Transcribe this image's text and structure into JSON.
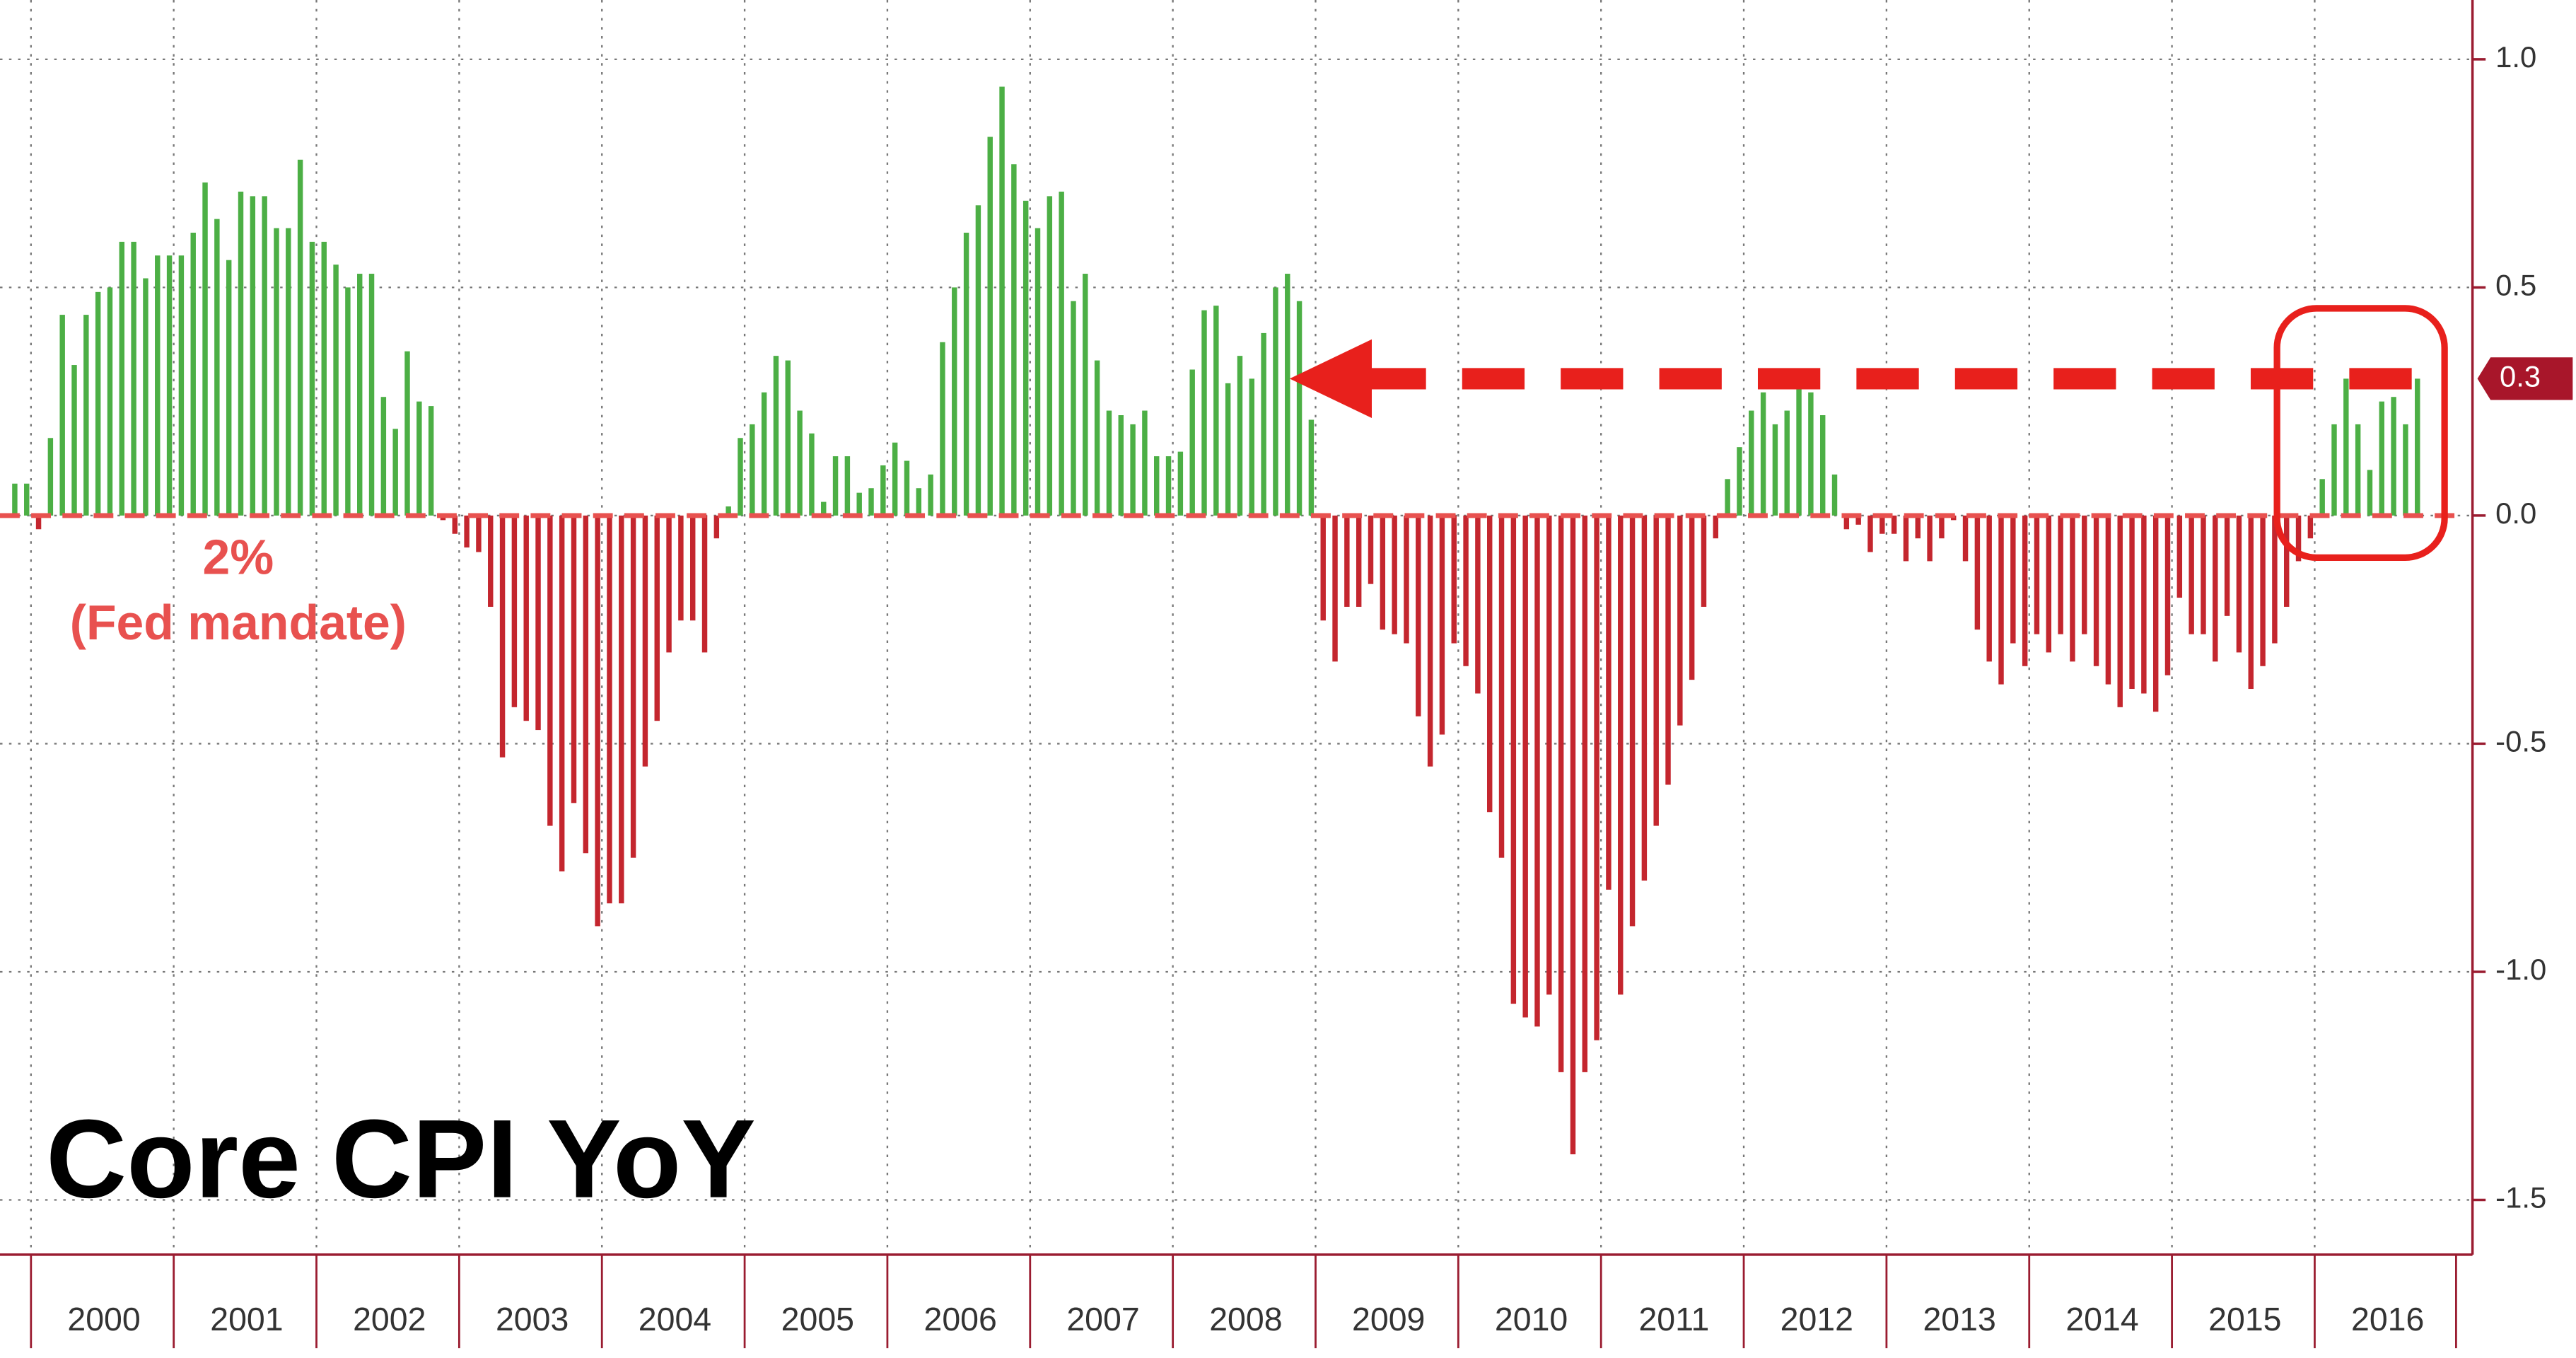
{
  "chart_data": {
    "type": "bar",
    "title": "Core CPI YoY",
    "annotation": [
      "2%",
      "(Fed mandate)"
    ],
    "categories": [
      null,
      null,
      null,
      null,
      null,
      null,
      null,
      null,
      "2000",
      null,
      null,
      null,
      null,
      null,
      null,
      null,
      null,
      null,
      null,
      null,
      "2001",
      null,
      null,
      null,
      null,
      null,
      null,
      null,
      null,
      null,
      null,
      null,
      "2002",
      null,
      null,
      null,
      null,
      null,
      null,
      null,
      null,
      null,
      null,
      null,
      "2003",
      null,
      null,
      null,
      null,
      null,
      null,
      null,
      null,
      null,
      null,
      null,
      "2004",
      null,
      null,
      null,
      null,
      null,
      null,
      null,
      null,
      null,
      null,
      null,
      "2005",
      null,
      null,
      null,
      null,
      null,
      null,
      null,
      null,
      null,
      null,
      null,
      "2006",
      null,
      null,
      null,
      null,
      null,
      null,
      null,
      null,
      null,
      null,
      null,
      "2007",
      null,
      null,
      null,
      null,
      null,
      null,
      null,
      null,
      null,
      null,
      null,
      "2008",
      null,
      null,
      null,
      null,
      null,
      null,
      null,
      null,
      null,
      null,
      null,
      "2009",
      null,
      null,
      null,
      null,
      null,
      null,
      null,
      null,
      null,
      null,
      null,
      "2010",
      null,
      null,
      null,
      null,
      null,
      null,
      null,
      null,
      null,
      null,
      null,
      "2011",
      null,
      null,
      null,
      null,
      null,
      null,
      null,
      null,
      null,
      null,
      null,
      "2012",
      null,
      null,
      null,
      null,
      null,
      null,
      null,
      null,
      null,
      null,
      null,
      "2013",
      null,
      null,
      null,
      null,
      null,
      null,
      null,
      null,
      null,
      null,
      null,
      "2014",
      null,
      null,
      null,
      null,
      null,
      null,
      null,
      null,
      null,
      null,
      null,
      "2015",
      null,
      null,
      null,
      null,
      null,
      null,
      null,
      null,
      null,
      null,
      null,
      "2016",
      null,
      null
    ],
    "values": [
      0.07,
      0.07,
      -0.03,
      0.17,
      0.44,
      0.33,
      0.44,
      0.49,
      0.5,
      0.6,
      0.6,
      0.52,
      0.57,
      0.57,
      0.57,
      0.62,
      0.73,
      0.65,
      0.56,
      0.71,
      0.7,
      0.7,
      0.63,
      0.63,
      0.78,
      0.6,
      0.6,
      0.55,
      0.5,
      0.53,
      0.53,
      0.26,
      0.19,
      0.36,
      0.25,
      0.24,
      -0.01,
      -0.04,
      -0.07,
      -0.08,
      -0.2,
      -0.53,
      -0.42,
      -0.45,
      -0.47,
      -0.68,
      -0.78,
      -0.63,
      -0.74,
      -0.9,
      -0.85,
      -0.85,
      -0.75,
      -0.55,
      -0.45,
      -0.3,
      -0.23,
      -0.23,
      -0.3,
      -0.05,
      0.02,
      0.17,
      0.2,
      0.27,
      0.35,
      0.34,
      0.23,
      0.18,
      0.03,
      0.13,
      0.13,
      0.05,
      0.06,
      0.11,
      0.16,
      0.12,
      0.06,
      0.09,
      0.38,
      0.5,
      0.62,
      0.68,
      0.83,
      0.94,
      0.77,
      0.69,
      0.63,
      0.7,
      0.71,
      0.47,
      0.53,
      0.34,
      0.23,
      0.22,
      0.2,
      0.23,
      0.13,
      0.13,
      0.14,
      0.32,
      0.45,
      0.46,
      0.29,
      0.35,
      0.3,
      0.4,
      0.5,
      0.53,
      0.47,
      0.21,
      -0.23,
      -0.32,
      -0.2,
      -0.2,
      -0.15,
      -0.25,
      -0.26,
      -0.28,
      -0.44,
      -0.55,
      -0.48,
      -0.28,
      -0.33,
      -0.39,
      -0.65,
      -0.75,
      -1.07,
      -1.1,
      -1.12,
      -1.05,
      -1.22,
      -1.4,
      -1.22,
      -1.15,
      -0.82,
      -1.05,
      -0.9,
      -0.8,
      -0.68,
      -0.59,
      -0.46,
      -0.36,
      -0.2,
      -0.05,
      0.08,
      0.15,
      0.23,
      0.27,
      0.2,
      0.23,
      0.28,
      0.27,
      0.22,
      0.09,
      -0.03,
      -0.02,
      -0.08,
      -0.04,
      -0.04,
      -0.1,
      -0.05,
      -0.1,
      -0.05,
      -0.01,
      -0.1,
      -0.25,
      -0.32,
      -0.37,
      -0.28,
      -0.33,
      -0.26,
      -0.3,
      -0.26,
      -0.32,
      -0.26,
      -0.33,
      -0.37,
      -0.42,
      -0.38,
      -0.39,
      -0.43,
      -0.35,
      -0.18,
      -0.26,
      -0.26,
      -0.32,
      -0.22,
      -0.3,
      -0.38,
      -0.33,
      -0.28,
      -0.2,
      -0.1,
      -0.05,
      0.08,
      0.2,
      0.3,
      0.2,
      0.1,
      0.25,
      0.26,
      0.2,
      0.3
    ],
    "positive_color": "#4caf45",
    "negative_color": "#c4262e",
    "ylim": [
      -1.62,
      1.13
    ],
    "yticks": [
      {
        "value": 1,
        "label": "1.0"
      },
      0.5,
      {
        "value": 0,
        "label": "0.0"
      },
      -0.5,
      {
        "value": -1,
        "label": "-1.0"
      },
      -1.5
    ],
    "grid": true
  }
}
